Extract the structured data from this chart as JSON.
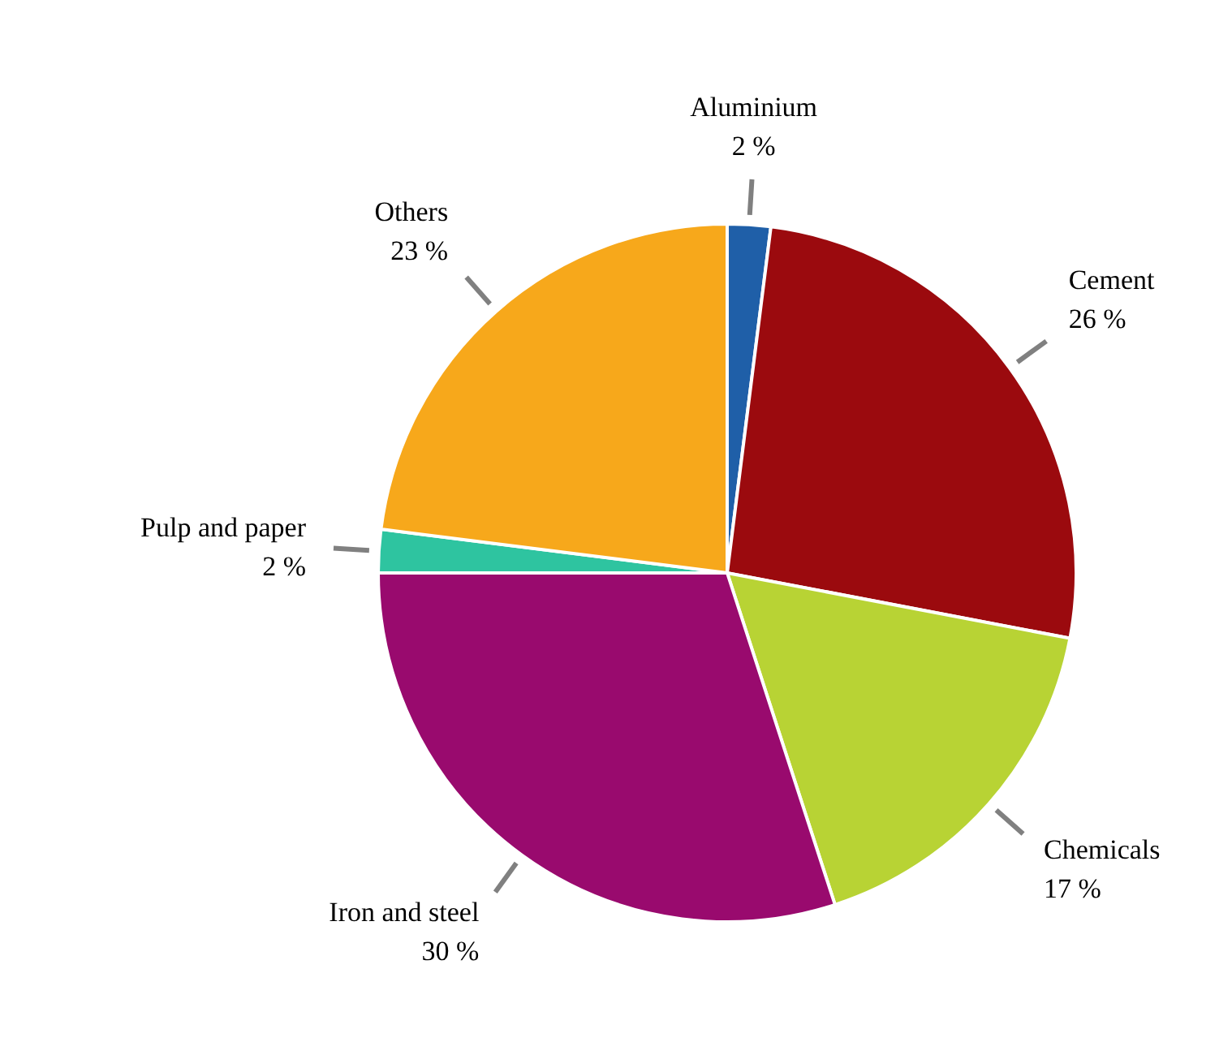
{
  "chart_data": {
    "type": "pie",
    "categories": [
      "Aluminium",
      "Cement",
      "Chemicals",
      "Iron and steel",
      "Pulp and paper",
      "Others"
    ],
    "values": [
      2,
      26,
      17,
      30,
      2,
      23
    ],
    "value_labels": [
      "2 %",
      "26 %",
      "17 %",
      "30 %",
      "2 %",
      "23 %"
    ],
    "colors": [
      "#1f5fa8",
      "#9b0a0e",
      "#b8d334",
      "#990a6e",
      "#2ec4a0",
      "#f7a81b"
    ]
  }
}
